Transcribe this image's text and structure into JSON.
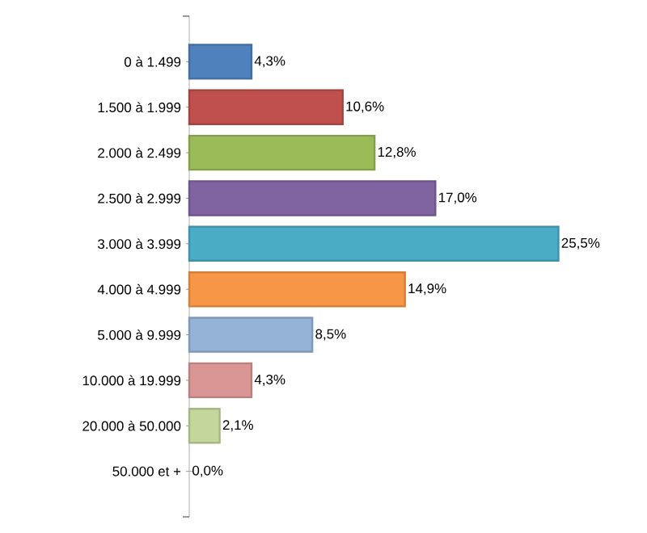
{
  "chart_data": {
    "type": "bar",
    "orientation": "horizontal",
    "categories": [
      "0 à 1.499",
      "1.500 à 1.999",
      "2.000 à 2.499",
      "2.500 à 2.999",
      "3.000 à 3.999",
      "4.000 à 4.999",
      "5.000 à 9.999",
      "10.000 à 19.999",
      "20.000 à 50.000",
      "50.000 et +"
    ],
    "values": [
      4.3,
      10.6,
      12.8,
      17.0,
      25.5,
      14.9,
      8.5,
      4.3,
      2.1,
      0.0
    ],
    "value_labels": [
      "4,3%",
      "10,6%",
      "12,8%",
      "17,0%",
      "25,5%",
      "14,9%",
      "8,5%",
      "4,3%",
      "2,1%",
      "0,0%"
    ],
    "colors": [
      "#4f81bd",
      "#c0504d",
      "#9bbb59",
      "#8064a2",
      "#4bacc6",
      "#f79646",
      "#95b3d7",
      "#d99694",
      "#c3d69b",
      "#4f81bd"
    ]
  }
}
